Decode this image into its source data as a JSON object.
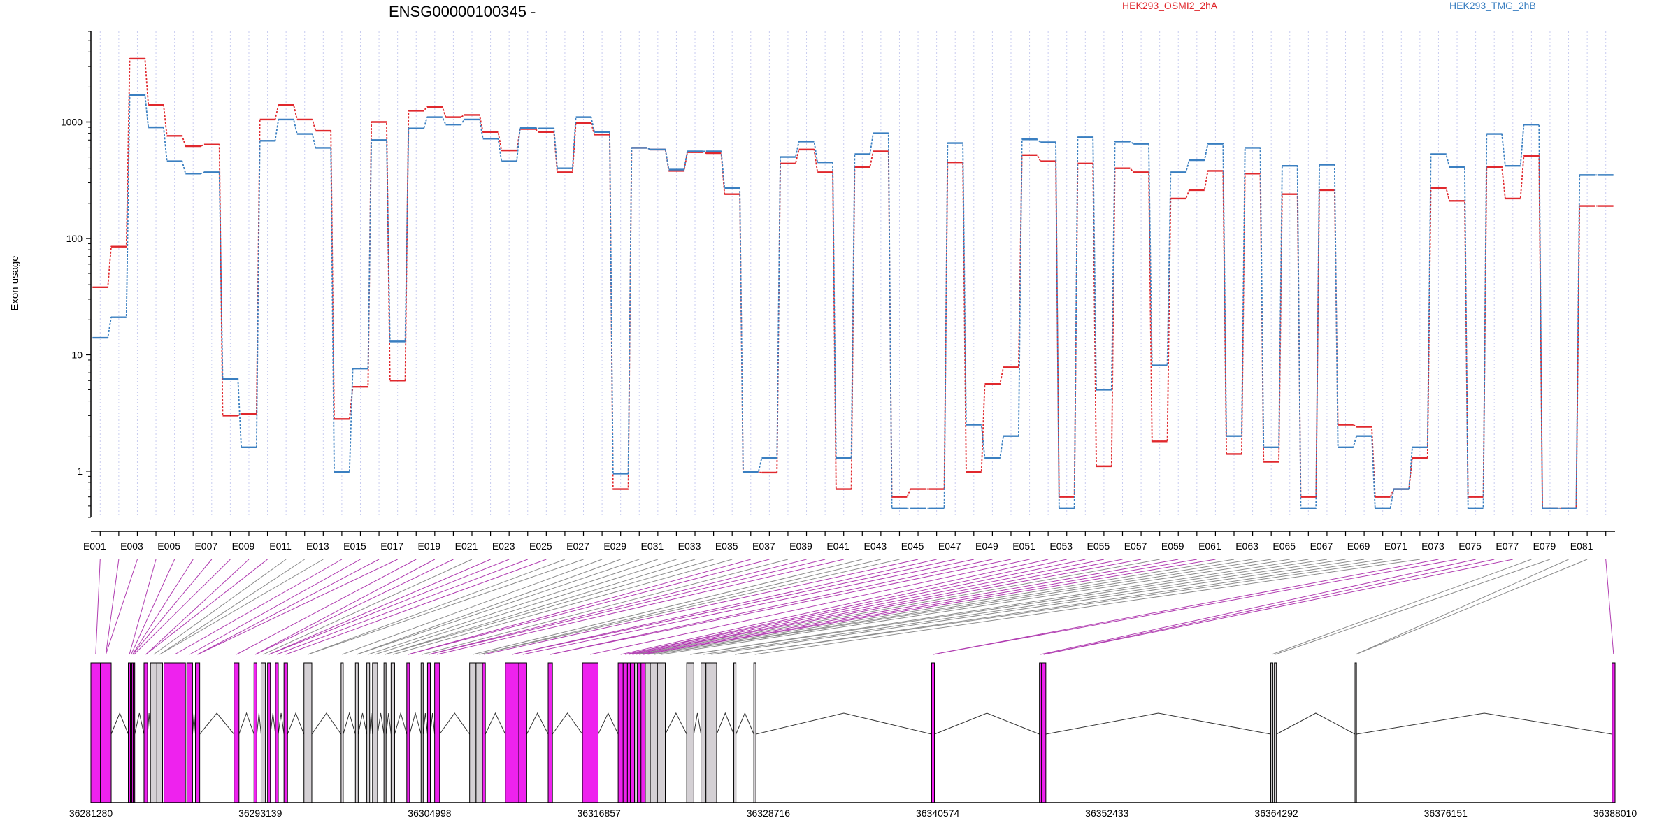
{
  "chart_data": {
    "type": "line",
    "title": "ENSG00000100345 -",
    "xlabel": "",
    "ylabel": "Exon usage",
    "y_scale": "log",
    "ylim": [
      0.4,
      6000
    ],
    "y_ticks": [
      1,
      10,
      100,
      1000
    ],
    "y_tick_labels": [
      "1",
      "10",
      "100",
      "1000"
    ],
    "grid": "vertical dotted lines at each exon",
    "legend_position": "top",
    "categories": [
      "E001",
      "E002",
      "E003",
      "E004",
      "E005",
      "E006",
      "E007",
      "E008",
      "E009",
      "E010",
      "E011",
      "E012",
      "E013",
      "E014",
      "E015",
      "E016",
      "E017",
      "E018",
      "E019",
      "E020",
      "E021",
      "E022",
      "E023",
      "E024",
      "E025",
      "E026",
      "E027",
      "E028",
      "E029",
      "E030",
      "E031",
      "E032",
      "E033",
      "E034",
      "E035",
      "E036",
      "E037",
      "E038",
      "E039",
      "E040",
      "E041",
      "E042",
      "E043",
      "E044",
      "E045",
      "E046",
      "E047",
      "E048",
      "E049",
      "E050",
      "E051",
      "E052",
      "E053",
      "E054",
      "E055",
      "E056",
      "E057",
      "E058",
      "E059",
      "E060",
      "E061",
      "E062",
      "E063",
      "E064",
      "E065",
      "E066",
      "E067",
      "E068",
      "E069",
      "E070",
      "E071",
      "E072",
      "E073",
      "E074",
      "E075",
      "E076",
      "E077",
      "E078",
      "E079",
      "E080",
      "E081",
      "E082"
    ],
    "x_tick_labels": [
      "E001",
      "E003",
      "E005",
      "E007",
      "E009",
      "E011",
      "E013",
      "E015",
      "E017",
      "E019",
      "E021",
      "E023",
      "E025",
      "E027",
      "E029",
      "E031",
      "E033",
      "E035",
      "E037",
      "E039",
      "E041",
      "E043",
      "E045",
      "E047",
      "E049",
      "E051",
      "E053",
      "E055",
      "E057",
      "E059",
      "E061",
      "E063",
      "E065",
      "E067",
      "E069",
      "E071",
      "E073",
      "E075",
      "E077",
      "E079",
      "E081"
    ],
    "series": [
      {
        "name": "HEK293_OSMI2_2hA",
        "color": "#e0282d",
        "values": [
          38,
          85,
          3500,
          1400,
          760,
          620,
          640,
          3,
          3.1,
          1050,
          1400,
          1050,
          840,
          2.8,
          5.3,
          1000,
          6,
          1250,
          1350,
          1100,
          1150,
          820,
          570,
          870,
          820,
          370,
          980,
          780,
          0.7,
          600,
          580,
          380,
          550,
          540,
          240,
          0.98,
          0.97,
          440,
          580,
          370,
          0.7,
          410,
          560,
          0.6,
          0.7,
          0.7,
          450,
          0.98,
          5.6,
          7.8,
          520,
          460,
          0.6,
          440,
          1.1,
          400,
          370,
          1.8,
          220,
          260,
          380,
          1.4,
          360,
          1.2,
          240,
          0.6,
          260,
          2.5,
          2.4,
          0.6,
          0.7,
          1.3,
          270,
          210,
          0.6,
          410,
          220,
          510,
          0.48,
          0.48,
          190,
          190
        ]
      },
      {
        "name": "HEK293_TMG_2hB",
        "color": "#3a7fc1",
        "values": [
          14,
          21,
          1700,
          900,
          460,
          360,
          370,
          6.2,
          1.6,
          690,
          1050,
          790,
          600,
          0.98,
          7.6,
          700,
          13,
          880,
          1100,
          950,
          1050,
          720,
          460,
          890,
          880,
          400,
          1100,
          820,
          0.95,
          600,
          580,
          390,
          560,
          560,
          270,
          0.98,
          1.3,
          500,
          680,
          450,
          1.3,
          530,
          800,
          0.48,
          0.48,
          0.48,
          660,
          2.5,
          1.3,
          2,
          710,
          670,
          0.48,
          740,
          5,
          680,
          650,
          8.1,
          370,
          470,
          650,
          2,
          600,
          1.6,
          420,
          0.48,
          430,
          1.6,
          2,
          0.48,
          0.7,
          1.6,
          530,
          410,
          0.48,
          790,
          420,
          950,
          0.48,
          0.48,
          350,
          350
        ]
      }
    ]
  },
  "gene_model": {
    "coordinate_labels": [
      "36281280",
      "36293139",
      "36304998",
      "36316857",
      "36328716",
      "36340574",
      "36352433",
      "36364292",
      "36376151",
      "36388010"
    ],
    "coordinate_range": [
      36281280,
      36388010
    ],
    "exon_colors": {
      "significant": "#ee22ee",
      "other": "#d4d0d4",
      "outline": "#000000"
    },
    "exons": [
      {
        "id": "E001",
        "start": 36281280,
        "end": 36281950,
        "highlight": true
      },
      {
        "id": "E002",
        "start": 36281950,
        "end": 36282700,
        "highlight": true
      },
      {
        "id": "E003",
        "start": 36283900,
        "end": 36284050,
        "highlight": true
      },
      {
        "id": "E004",
        "start": 36284050,
        "end": 36284150,
        "highlight": true
      },
      {
        "id": "E005",
        "start": 36284150,
        "end": 36284250,
        "highlight": true
      },
      {
        "id": "E006",
        "start": 36284250,
        "end": 36284350,
        "highlight": true
      },
      {
        "id": "E007",
        "start": 36285000,
        "end": 36285250,
        "highlight": true
      },
      {
        "id": "E008",
        "start": 36285450,
        "end": 36285900,
        "highlight": false
      },
      {
        "id": "E009",
        "start": 36285900,
        "end": 36286300,
        "highlight": false
      },
      {
        "id": "E010",
        "start": 36286400,
        "end": 36287900,
        "highlight": true
      },
      {
        "id": "E011",
        "start": 36288000,
        "end": 36288400,
        "highlight": true
      },
      {
        "id": "E012",
        "start": 36288600,
        "end": 36288900,
        "highlight": true
      },
      {
        "id": "E013",
        "start": 36291300,
        "end": 36291650,
        "highlight": true
      },
      {
        "id": "E014",
        "start": 36292700,
        "end": 36292900,
        "highlight": true
      },
      {
        "id": "E015",
        "start": 36293200,
        "end": 36293500,
        "highlight": false
      },
      {
        "id": "E016",
        "start": 36293650,
        "end": 36293850,
        "highlight": true
      },
      {
        "id": "E017",
        "start": 36294200,
        "end": 36294400,
        "highlight": true
      },
      {
        "id": "E018",
        "start": 36294800,
        "end": 36295050,
        "highlight": true
      },
      {
        "id": "E019",
        "start": 36296200,
        "end": 36296750,
        "highlight": false
      },
      {
        "id": "E020",
        "start": 36298800,
        "end": 36298950,
        "highlight": false
      },
      {
        "id": "E021",
        "start": 36299800,
        "end": 36300000,
        "highlight": false
      },
      {
        "id": "E022",
        "start": 36300600,
        "end": 36300800,
        "highlight": false
      },
      {
        "id": "E023",
        "start": 36301000,
        "end": 36301350,
        "highlight": false
      },
      {
        "id": "E024",
        "start": 36301800,
        "end": 36301950,
        "highlight": false
      },
      {
        "id": "E025",
        "start": 36302300,
        "end": 36302550,
        "highlight": false
      },
      {
        "id": "E026",
        "start": 36303400,
        "end": 36303600,
        "highlight": true
      },
      {
        "id": "E027",
        "start": 36304400,
        "end": 36304550,
        "highlight": false
      },
      {
        "id": "E028",
        "start": 36304850,
        "end": 36305050,
        "highlight": true
      },
      {
        "id": "E029",
        "start": 36305350,
        "end": 36305700,
        "highlight": true
      },
      {
        "id": "E030",
        "start": 36307800,
        "end": 36308250,
        "highlight": false
      },
      {
        "id": "E031",
        "start": 36308250,
        "end": 36308700,
        "highlight": false
      },
      {
        "id": "E032",
        "start": 36308700,
        "end": 36308900,
        "highlight": true
      },
      {
        "id": "E033",
        "start": 36310300,
        "end": 36311250,
        "highlight": true
      },
      {
        "id": "E034",
        "start": 36311250,
        "end": 36311800,
        "highlight": true
      },
      {
        "id": "E035",
        "start": 36313300,
        "end": 36313600,
        "highlight": true
      },
      {
        "id": "E036",
        "start": 36315700,
        "end": 36316800,
        "highlight": true
      },
      {
        "id": "E037",
        "start": 36318200,
        "end": 36318550,
        "highlight": true
      },
      {
        "id": "E038",
        "start": 36318550,
        "end": 36318850,
        "highlight": true
      },
      {
        "id": "E039",
        "start": 36318850,
        "end": 36319050,
        "highlight": true
      },
      {
        "id": "E040",
        "start": 36319050,
        "end": 36319350,
        "highlight": true
      },
      {
        "id": "E041",
        "start": 36319350,
        "end": 36319550,
        "highlight": false
      },
      {
        "id": "E042",
        "start": 36319550,
        "end": 36319800,
        "highlight": true
      },
      {
        "id": "E043",
        "start": 36319800,
        "end": 36320100,
        "highlight": true
      },
      {
        "id": "E044",
        "start": 36320100,
        "end": 36320450,
        "highlight": false
      },
      {
        "id": "E045",
        "start": 36320450,
        "end": 36320950,
        "highlight": false
      },
      {
        "id": "E046",
        "start": 36320950,
        "end": 36321500,
        "highlight": false
      },
      {
        "id": "E047",
        "start": 36323000,
        "end": 36323500,
        "highlight": false
      },
      {
        "id": "E048",
        "start": 36324000,
        "end": 36324350,
        "highlight": false
      },
      {
        "id": "E049",
        "start": 36324350,
        "end": 36325100,
        "highlight": false
      },
      {
        "id": "E050",
        "start": 36326300,
        "end": 36326450,
        "highlight": false
      },
      {
        "id": "E051",
        "start": 36327700,
        "end": 36327850,
        "highlight": false
      },
      {
        "id": "E052",
        "start": 36340150,
        "end": 36340350,
        "highlight": true
      },
      {
        "id": "E053",
        "start": 36347700,
        "end": 36347850,
        "highlight": true
      },
      {
        "id": "E054",
        "start": 36347850,
        "end": 36348150,
        "highlight": true
      },
      {
        "id": "E055",
        "start": 36363900,
        "end": 36364050,
        "highlight": false
      },
      {
        "id": "E056",
        "start": 36364150,
        "end": 36364300,
        "highlight": false
      },
      {
        "id": "E057",
        "start": 36369800,
        "end": 36369900,
        "highlight": false
      },
      {
        "id": "E058",
        "start": 36387800,
        "end": 36388010,
        "highlight": true
      }
    ]
  },
  "connector_colors": {
    "significant": "#b03cb0",
    "other": "#8c8c8c"
  }
}
